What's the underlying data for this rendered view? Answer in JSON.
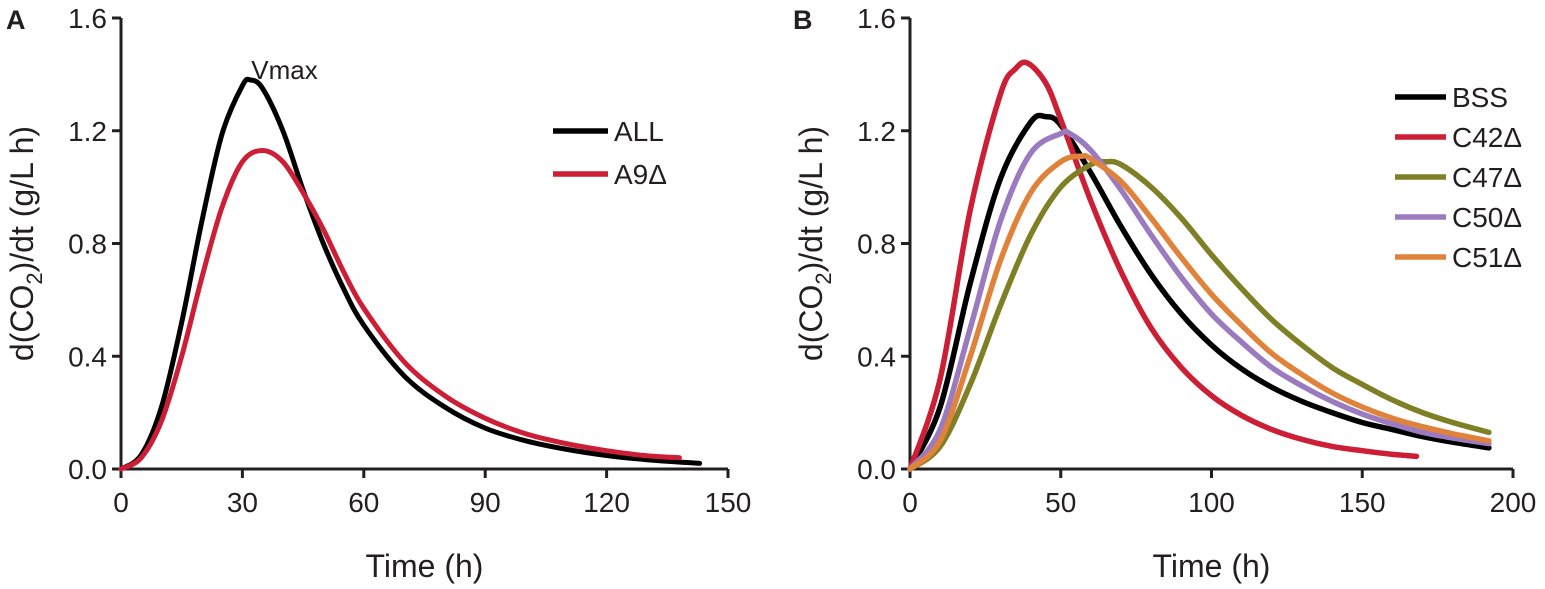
{
  "chart_data": [
    {
      "panel": "A",
      "type": "line",
      "title": "",
      "xlabel": "Time (h)",
      "ylabel_parts": [
        "d(CO",
        "2",
        ")/dt (g/L h)"
      ],
      "xlim": [
        0,
        150
      ],
      "ylim": [
        0,
        1.6
      ],
      "xticks": [
        0,
        30,
        60,
        90,
        120,
        150
      ],
      "xtick_labels": [
        "0",
        "30",
        "60",
        "90",
        "120",
        "150"
      ],
      "yticks": [
        0,
        0.4,
        0.8,
        1.2,
        1.6
      ],
      "ytick_labels": [
        "0.0",
        "0.4",
        "0.8",
        "1.2",
        "1.6"
      ],
      "grid": false,
      "legend_position": "top-right",
      "annotations": [
        {
          "text": "Vmax",
          "x": 32,
          "y": 1.43
        }
      ],
      "series": [
        {
          "name": "ALL",
          "color": "#000000",
          "x": [
            0,
            5,
            10,
            15,
            20,
            25,
            30,
            32,
            35,
            40,
            45,
            50,
            55,
            60,
            70,
            80,
            90,
            100,
            110,
            120,
            130,
            143
          ],
          "y": [
            0,
            0.05,
            0.22,
            0.52,
            0.88,
            1.19,
            1.36,
            1.38,
            1.35,
            1.2,
            0.99,
            0.8,
            0.64,
            0.51,
            0.33,
            0.22,
            0.145,
            0.1,
            0.07,
            0.048,
            0.033,
            0.02
          ]
        },
        {
          "name": "A9Δ",
          "color": "#cc1f36",
          "x": [
            0,
            5,
            10,
            15,
            20,
            25,
            30,
            35,
            40,
            45,
            50,
            55,
            60,
            70,
            80,
            90,
            100,
            110,
            120,
            130,
            138
          ],
          "y": [
            0,
            0.04,
            0.17,
            0.4,
            0.68,
            0.93,
            1.09,
            1.13,
            1.09,
            0.98,
            0.85,
            0.7,
            0.57,
            0.38,
            0.26,
            0.18,
            0.125,
            0.09,
            0.065,
            0.047,
            0.04
          ]
        }
      ]
    },
    {
      "panel": "B",
      "type": "line",
      "title": "",
      "xlabel": "Time (h)",
      "ylabel_parts": [
        "d(CO",
        "2",
        ")/dt (g/L h)"
      ],
      "xlim": [
        0,
        200
      ],
      "ylim": [
        0,
        1.6
      ],
      "xticks": [
        0,
        50,
        100,
        150,
        200
      ],
      "xtick_labels": [
        "0",
        "50",
        "100",
        "150",
        "200"
      ],
      "yticks": [
        0,
        0.4,
        0.8,
        1.2,
        1.6
      ],
      "ytick_labels": [
        "0.0",
        "0.4",
        "0.8",
        "1.2",
        "1.6"
      ],
      "grid": false,
      "legend_position": "top-right",
      "annotations": [],
      "series": [
        {
          "name": "BSS",
          "color": "#000000",
          "x": [
            0,
            10,
            20,
            30,
            40,
            45,
            50,
            60,
            70,
            80,
            90,
            100,
            110,
            120,
            130,
            140,
            150,
            160,
            170,
            180,
            192
          ],
          "y": [
            0,
            0.22,
            0.66,
            1.03,
            1.23,
            1.25,
            1.22,
            1.05,
            0.86,
            0.69,
            0.55,
            0.44,
            0.355,
            0.29,
            0.24,
            0.2,
            0.165,
            0.14,
            0.115,
            0.095,
            0.075
          ]
        },
        {
          "name": "C42Δ",
          "color": "#cc1f36",
          "x": [
            0,
            10,
            20,
            30,
            35,
            39,
            45,
            50,
            60,
            70,
            80,
            90,
            100,
            110,
            120,
            130,
            140,
            150,
            160,
            168
          ],
          "y": [
            0,
            0.32,
            0.92,
            1.33,
            1.42,
            1.44,
            1.37,
            1.24,
            0.95,
            0.7,
            0.5,
            0.36,
            0.26,
            0.19,
            0.14,
            0.105,
            0.08,
            0.065,
            0.052,
            0.045
          ]
        },
        {
          "name": "C47Δ",
          "color": "#7f7f26",
          "x": [
            0,
            10,
            20,
            30,
            40,
            50,
            60,
            65,
            70,
            80,
            90,
            100,
            110,
            120,
            130,
            140,
            150,
            160,
            170,
            180,
            192
          ],
          "y": [
            0,
            0.08,
            0.3,
            0.58,
            0.83,
            1.0,
            1.08,
            1.09,
            1.08,
            1.0,
            0.89,
            0.76,
            0.64,
            0.53,
            0.44,
            0.36,
            0.3,
            0.245,
            0.2,
            0.165,
            0.13
          ]
        },
        {
          "name": "C50Δ",
          "color": "#9b7bbf",
          "x": [
            0,
            10,
            20,
            30,
            40,
            50,
            53,
            60,
            70,
            80,
            90,
            100,
            110,
            120,
            130,
            140,
            150,
            160,
            170,
            180,
            192
          ],
          "y": [
            0,
            0.14,
            0.5,
            0.88,
            1.12,
            1.19,
            1.19,
            1.13,
            0.99,
            0.83,
            0.68,
            0.55,
            0.45,
            0.36,
            0.295,
            0.24,
            0.195,
            0.16,
            0.13,
            0.11,
            0.09
          ]
        },
        {
          "name": "C51Δ",
          "color": "#e0823a",
          "x": [
            0,
            10,
            20,
            30,
            40,
            50,
            57,
            60,
            70,
            80,
            90,
            100,
            110,
            120,
            130,
            140,
            150,
            160,
            170,
            180,
            192
          ],
          "y": [
            0,
            0.1,
            0.4,
            0.74,
            0.98,
            1.09,
            1.11,
            1.1,
            1.02,
            0.89,
            0.75,
            0.62,
            0.51,
            0.41,
            0.335,
            0.27,
            0.22,
            0.18,
            0.15,
            0.125,
            0.1
          ]
        }
      ]
    }
  ]
}
